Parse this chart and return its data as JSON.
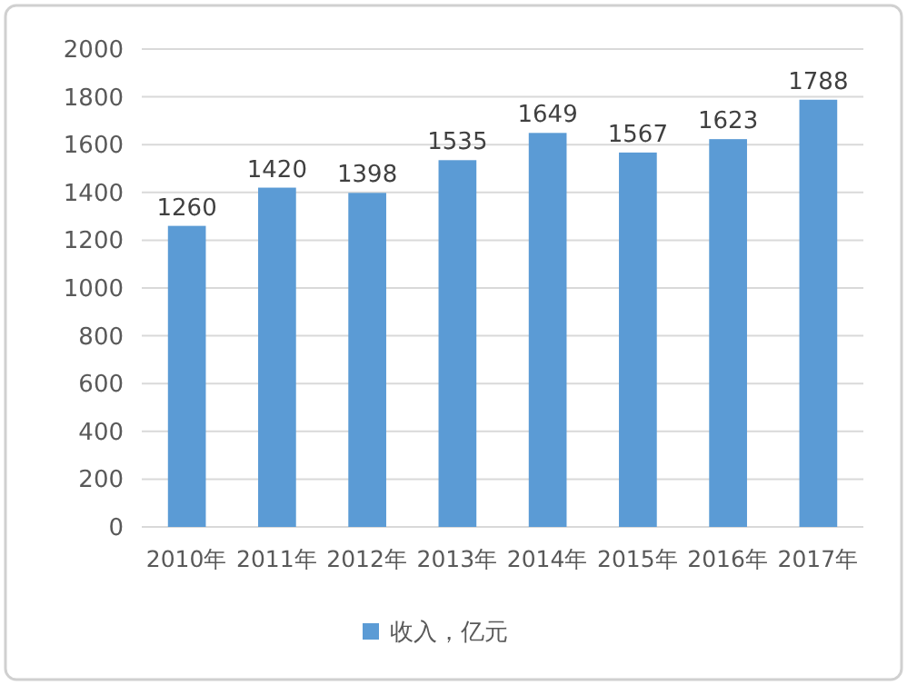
{
  "chart_data": {
    "type": "bar",
    "categories": [
      "2010年",
      "2011年",
      "2012年",
      "2013年",
      "2014年",
      "2015年",
      "2016年",
      "2017年"
    ],
    "series": [
      {
        "name": "收入，亿元",
        "color": "#5b9bd5",
        "values": [
          1260,
          1420,
          1398,
          1535,
          1649,
          1567,
          1623,
          1788
        ]
      }
    ],
    "ylim": [
      0,
      2000
    ],
    "yticks": [
      0,
      200,
      400,
      600,
      800,
      1000,
      1200,
      1400,
      1600,
      1800,
      2000
    ],
    "grid": "y",
    "legend": "bottom",
    "data_labels": true
  }
}
